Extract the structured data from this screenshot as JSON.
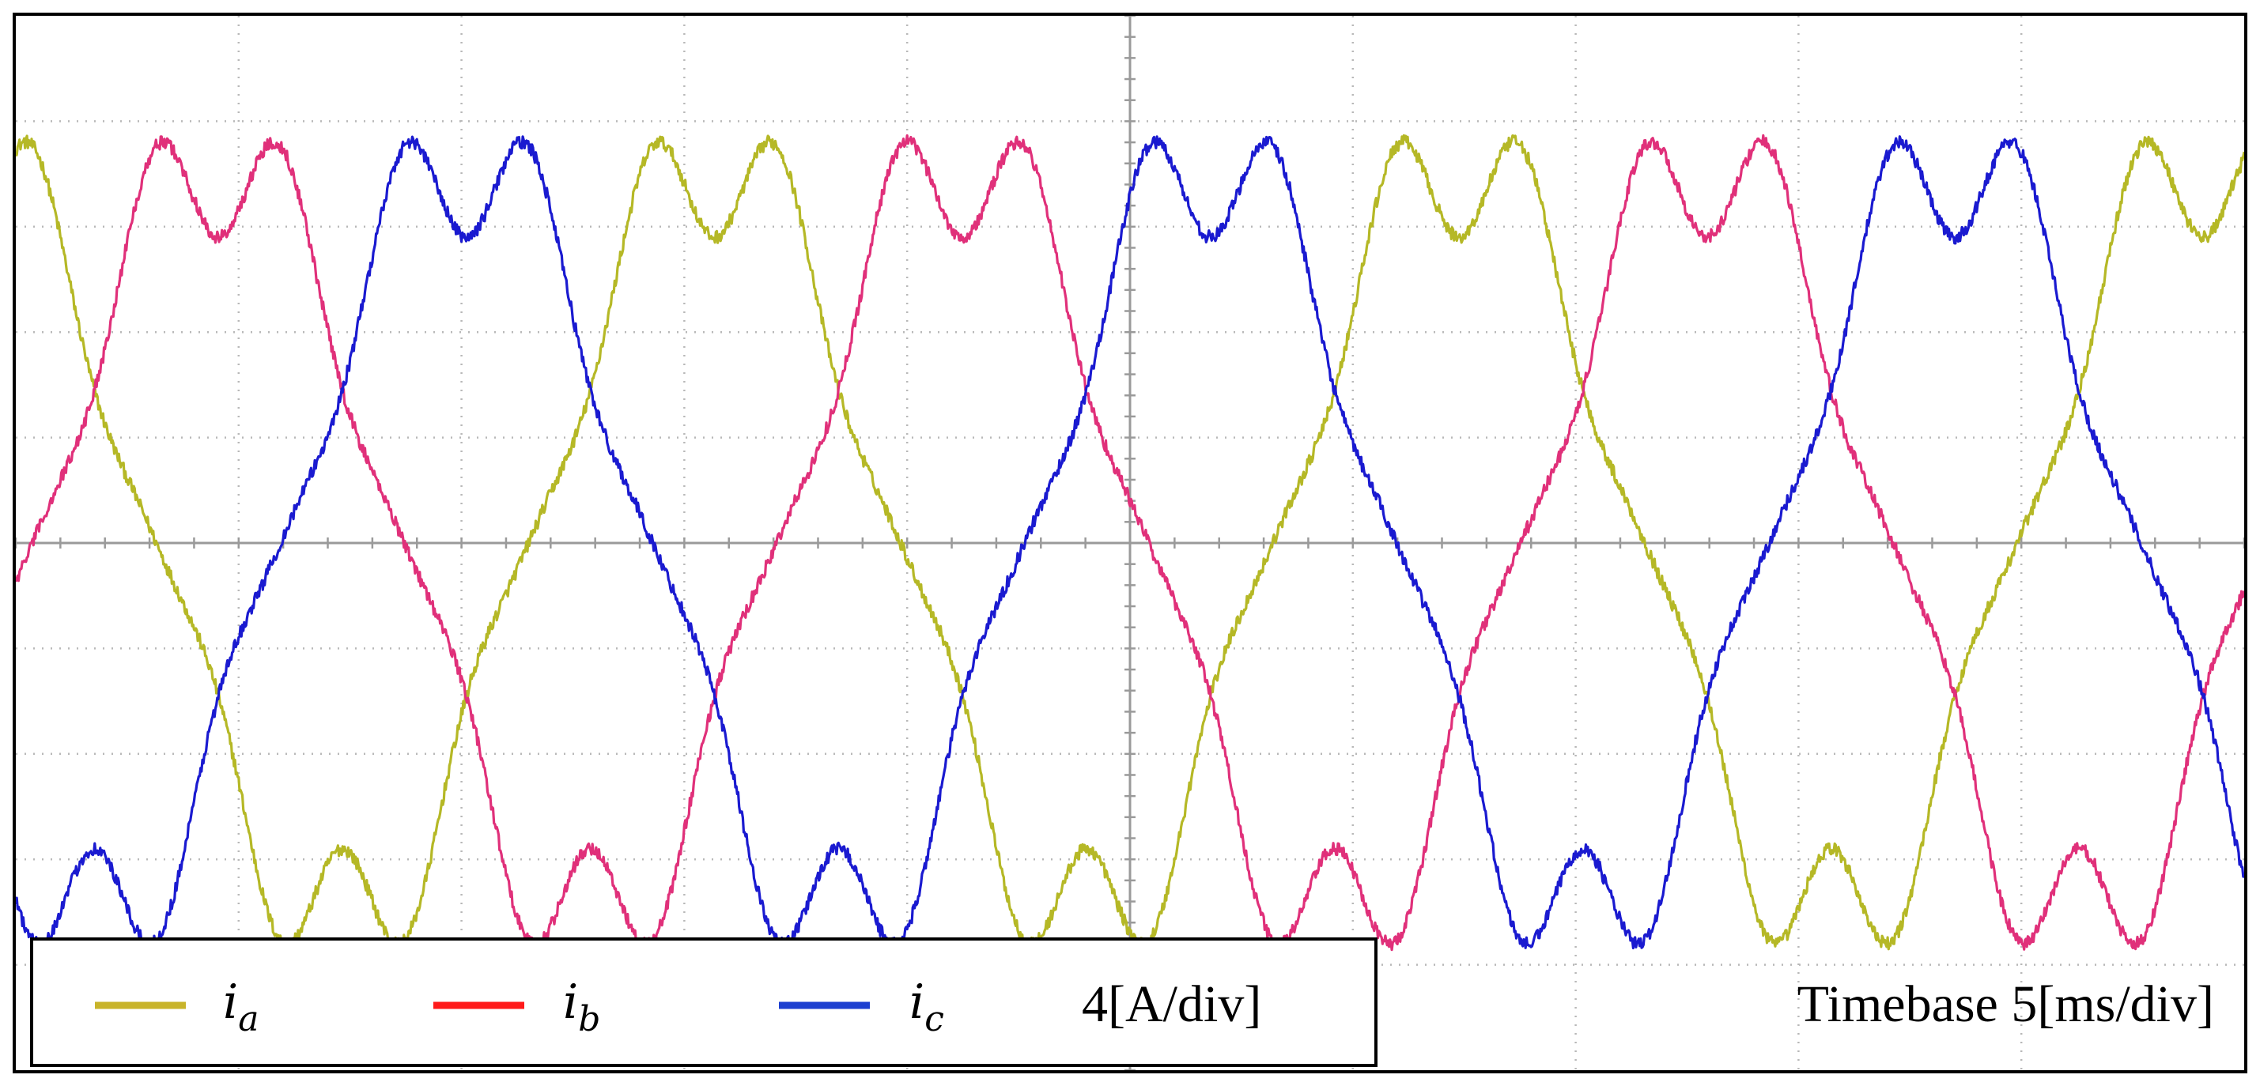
{
  "chart_data": {
    "type": "line",
    "title": "",
    "xlabel": "",
    "ylabel": "",
    "x_divisions": 10,
    "y_divisions": 10,
    "minor_ticks_per_division": 5,
    "grid": true,
    "grid_style": "dotted",
    "time_per_div_ms": 5,
    "amplitude_per_div_A": 4,
    "xlim_ms": [
      0,
      50
    ],
    "ylim_A": [
      -20,
      20
    ],
    "fundamental_period_ms": 16.7,
    "peak_A": 14.5,
    "harmonics": [
      {
        "order": 1,
        "relative_amplitude": 1.0
      },
      {
        "order": 5,
        "relative_amplitude": 0.14
      },
      {
        "order": 7,
        "relative_amplitude": 0.06
      }
    ],
    "noise_A": 0.25,
    "series": [
      {
        "label": "i",
        "subscript": "a",
        "color": "#b5b826",
        "phase_deg": 112
      },
      {
        "label": "i",
        "subscript": "b",
        "color": "#e0307a",
        "phase_deg": -8
      },
      {
        "label": "i",
        "subscript": "c",
        "color": "#1a1ad0",
        "phase_deg": -128
      }
    ],
    "legend": {
      "position": "bottom-left",
      "entries": [
        {
          "label": "i",
          "subscript": "a",
          "swatch_color": "#c8b42a"
        },
        {
          "label": "i",
          "subscript": "b",
          "swatch_color": "#ff1a1a"
        },
        {
          "label": "i",
          "subscript": "c",
          "swatch_color": "#1d3fd0"
        }
      ],
      "scale_text": "4[A/div]"
    },
    "timebase_text": "Timebase 5[ms/div]"
  }
}
